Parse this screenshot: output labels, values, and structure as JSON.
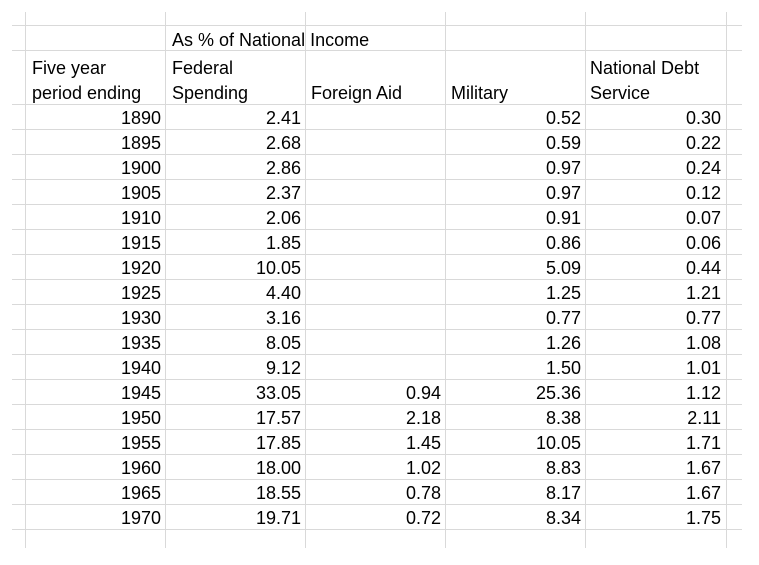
{
  "table": {
    "title": "As % of National Income",
    "headers": {
      "year_line1": "Five year",
      "year_line2": "period ending",
      "federal_line1": "Federal",
      "federal_line2": "Spending",
      "foreign_aid": "Foreign Aid",
      "military": "Military",
      "debt_line1": "National Debt",
      "debt_line2": "Service"
    },
    "rows": [
      {
        "year": "1890",
        "federal": "2.41",
        "foreign_aid": "",
        "military": "0.52",
        "debt": "0.30"
      },
      {
        "year": "1895",
        "federal": "2.68",
        "foreign_aid": "",
        "military": "0.59",
        "debt": "0.22"
      },
      {
        "year": "1900",
        "federal": "2.86",
        "foreign_aid": "",
        "military": "0.97",
        "debt": "0.24"
      },
      {
        "year": "1905",
        "federal": "2.37",
        "foreign_aid": "",
        "military": "0.97",
        "debt": "0.12"
      },
      {
        "year": "1910",
        "federal": "2.06",
        "foreign_aid": "",
        "military": "0.91",
        "debt": "0.07"
      },
      {
        "year": "1915",
        "federal": "1.85",
        "foreign_aid": "",
        "military": "0.86",
        "debt": "0.06"
      },
      {
        "year": "1920",
        "federal": "10.05",
        "foreign_aid": "",
        "military": "5.09",
        "debt": "0.44"
      },
      {
        "year": "1925",
        "federal": "4.40",
        "foreign_aid": "",
        "military": "1.25",
        "debt": "1.21"
      },
      {
        "year": "1930",
        "federal": "3.16",
        "foreign_aid": "",
        "military": "0.77",
        "debt": "0.77"
      },
      {
        "year": "1935",
        "federal": "8.05",
        "foreign_aid": "",
        "military": "1.26",
        "debt": "1.08"
      },
      {
        "year": "1940",
        "federal": "9.12",
        "foreign_aid": "",
        "military": "1.50",
        "debt": "1.01"
      },
      {
        "year": "1945",
        "federal": "33.05",
        "foreign_aid": "0.94",
        "military": "25.36",
        "debt": "1.12"
      },
      {
        "year": "1950",
        "federal": "17.57",
        "foreign_aid": "2.18",
        "military": "8.38",
        "debt": "2.11"
      },
      {
        "year": "1955",
        "federal": "17.85",
        "foreign_aid": "1.45",
        "military": "10.05",
        "debt": "1.71"
      },
      {
        "year": "1960",
        "federal": "18.00",
        "foreign_aid": "1.02",
        "military": "8.83",
        "debt": "1.67"
      },
      {
        "year": "1965",
        "federal": "18.55",
        "foreign_aid": "0.78",
        "military": "8.17",
        "debt": "1.67"
      },
      {
        "year": "1970",
        "federal": "19.71",
        "foreign_aid": "0.72",
        "military": "8.34",
        "debt": "1.75"
      }
    ]
  }
}
